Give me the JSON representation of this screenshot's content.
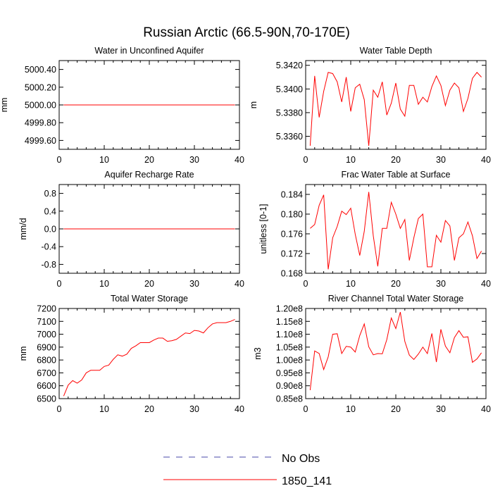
{
  "figure": {
    "title": "Russian Arctic (66.5-90N,70-170E)",
    "line_color": "#ff0000",
    "obs_color": "#4a4aa8",
    "legend": [
      {
        "label": "No Obs",
        "style": "dashed"
      },
      {
        "label": "1850_141",
        "style": "solid"
      }
    ]
  },
  "chart_data": [
    {
      "type": "line",
      "title": "Water in Unconfined Aquifer",
      "ylabel": "mm",
      "xlim": [
        0,
        40
      ],
      "ylim": [
        4999.5,
        5000.5
      ],
      "xticks": [
        0,
        10,
        20,
        30,
        40
      ],
      "yticks": [
        4999.6,
        4999.8,
        5000.0,
        5000.2,
        5000.4
      ],
      "ytick_labels": [
        "4999.60",
        "4999.80",
        "5000.00",
        "5000.20",
        "5000.40"
      ],
      "series": [
        {
          "name": "1850_141",
          "x_start": 1,
          "values": [
            5000,
            5000,
            5000,
            5000,
            5000,
            5000,
            5000,
            5000,
            5000,
            5000,
            5000,
            5000,
            5000,
            5000,
            5000,
            5000,
            5000,
            5000,
            5000,
            5000,
            5000,
            5000,
            5000,
            5000,
            5000,
            5000,
            5000,
            5000,
            5000,
            5000,
            5000,
            5000,
            5000,
            5000,
            5000,
            5000,
            5000,
            5000,
            5000
          ]
        }
      ]
    },
    {
      "type": "line",
      "title": "Water Table Depth",
      "ylabel": "m",
      "xlim": [
        0,
        40
      ],
      "ylim": [
        5.3349,
        5.3424
      ],
      "xticks": [
        0,
        10,
        20,
        30,
        40
      ],
      "yticks": [
        5.336,
        5.338,
        5.34,
        5.342
      ],
      "ytick_labels": [
        "5.3360",
        "5.3380",
        "5.3400",
        "5.3420"
      ],
      "series": [
        {
          "name": "1850_141",
          "x_start": 1,
          "values": [
            5.3352,
            5.3411,
            5.3376,
            5.3398,
            5.3414,
            5.3413,
            5.3406,
            5.3389,
            5.341,
            5.3381,
            5.3401,
            5.3404,
            5.3391,
            5.3352,
            5.3399,
            5.3393,
            5.3406,
            5.3378,
            5.3388,
            5.3405,
            5.3383,
            5.3377,
            5.3403,
            5.3403,
            5.3387,
            5.3393,
            5.3389,
            5.3402,
            5.3411,
            5.3403,
            5.3386,
            5.3399,
            5.3405,
            5.3401,
            5.3381,
            5.3392,
            5.3409,
            5.3414,
            5.341
          ]
        }
      ]
    },
    {
      "type": "line",
      "title": "Aquifer Recharge Rate",
      "ylabel": "mm/d",
      "xlim": [
        0,
        40
      ],
      "ylim": [
        -1.0,
        1.0
      ],
      "xticks": [
        0,
        10,
        20,
        30,
        40
      ],
      "yticks": [
        -0.8,
        -0.4,
        0.0,
        0.4,
        0.8
      ],
      "ytick_labels": [
        "-0.8",
        "-0.4",
        "0.0",
        "0.4",
        "0.8"
      ],
      "series": [
        {
          "name": "1850_141",
          "x_start": 1,
          "values": [
            0,
            0,
            0,
            0,
            0,
            0,
            0,
            0,
            0,
            0,
            0,
            0,
            0,
            0,
            0,
            0,
            0,
            0,
            0,
            0,
            0,
            0,
            0,
            0,
            0,
            0,
            0,
            0,
            0,
            0,
            0,
            0,
            0,
            0,
            0,
            0,
            0,
            0,
            0
          ]
        }
      ]
    },
    {
      "type": "line",
      "title": "Frac Water Table at Surface",
      "ylabel": "unitless [0-1]",
      "xlim": [
        0,
        40
      ],
      "ylim": [
        0.168,
        0.186
      ],
      "xticks": [
        0,
        10,
        20,
        30,
        40
      ],
      "yticks": [
        0.168,
        0.172,
        0.176,
        0.18,
        0.184
      ],
      "ytick_labels": [
        "0.168",
        "0.172",
        "0.176",
        "0.180",
        "0.184"
      ],
      "series": [
        {
          "name": "1850_141",
          "x_start": 1,
          "values": [
            0.1771,
            0.1779,
            0.1818,
            0.1839,
            0.1688,
            0.1752,
            0.1775,
            0.1806,
            0.1799,
            0.1812,
            0.1759,
            0.1716,
            0.1765,
            0.1845,
            0.1756,
            0.1694,
            0.1771,
            0.1771,
            0.1824,
            0.18,
            0.1771,
            0.1789,
            0.1706,
            0.1752,
            0.1791,
            0.18,
            0.1693,
            0.1693,
            0.1757,
            0.1743,
            0.1787,
            0.1776,
            0.1706,
            0.1752,
            0.176,
            0.1784,
            0.1756,
            0.171,
            0.1725
          ]
        }
      ]
    },
    {
      "type": "line",
      "title": "Total Water Storage",
      "ylabel": "mm",
      "xlim": [
        0,
        40
      ],
      "ylim": [
        6500,
        7200
      ],
      "xticks": [
        0,
        10,
        20,
        30,
        40
      ],
      "yticks": [
        6500,
        6600,
        6700,
        6800,
        6900,
        7000,
        7100,
        7200
      ],
      "ytick_labels": [
        "6500",
        "6600",
        "6700",
        "6800",
        "6900",
        "7000",
        "7100",
        "7200"
      ],
      "series": [
        {
          "name": "1850_141",
          "x_start": 1,
          "values": [
            6520,
            6605,
            6640,
            6620,
            6645,
            6700,
            6720,
            6720,
            6720,
            6750,
            6760,
            6805,
            6840,
            6830,
            6845,
            6890,
            6910,
            6935,
            6935,
            6935,
            6955,
            6970,
            6970,
            6945,
            6950,
            6960,
            6985,
            7010,
            7005,
            7030,
            7025,
            7010,
            7050,
            7080,
            7090,
            7090,
            7090,
            7100,
            7115
          ]
        }
      ]
    },
    {
      "type": "line",
      "title": "River Channel Total Water Storage",
      "ylabel": "m3",
      "xlim": [
        0,
        40
      ],
      "ylim": [
        85000000,
        120000000
      ],
      "xticks": [
        0,
        10,
        20,
        30,
        40
      ],
      "yticks": [
        85000000,
        90000000,
        95000000,
        100000000,
        105000000,
        110000000,
        115000000,
        120000000
      ],
      "ytick_labels": [
        "0.85e8",
        "0.90e8",
        "0.95e8",
        "1.00e8",
        "1.05e8",
        "1.10e8",
        "1.15e8",
        "1.20e8"
      ],
      "series": [
        {
          "name": "1850_141",
          "x_start": 1,
          "values": [
            88300000,
            103500000,
            102500000,
            96300000,
            101200000,
            110000000,
            110200000,
            102500000,
            105300000,
            105000000,
            103100000,
            109500000,
            114000000,
            105100000,
            102000000,
            102500000,
            102400000,
            107900000,
            116300000,
            112200000,
            118600000,
            107200000,
            101900000,
            100200000,
            102300000,
            105000000,
            102500000,
            110300000,
            99200000,
            111900000,
            105400000,
            102800000,
            108700000,
            111400000,
            108800000,
            109000000,
            99100000,
            100400000,
            102800000
          ]
        }
      ]
    }
  ]
}
